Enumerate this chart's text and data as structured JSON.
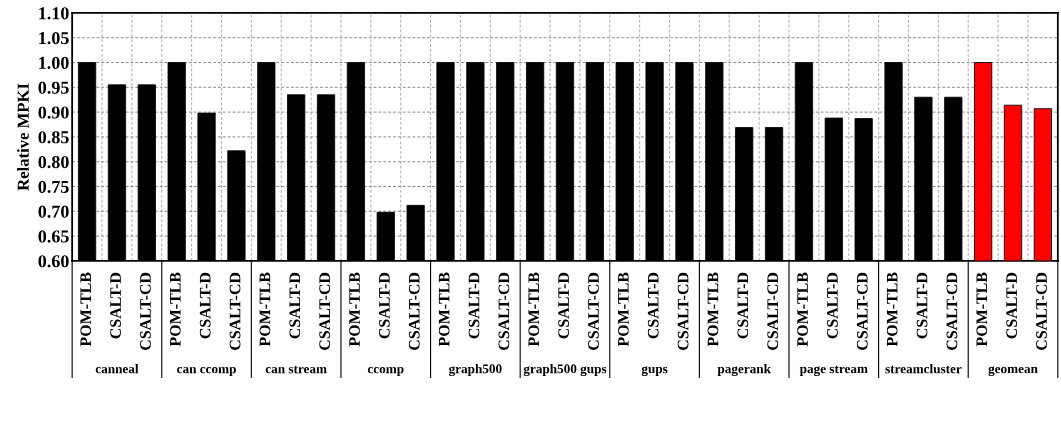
{
  "chart_data": {
    "type": "bar",
    "ylabel": "Relative MPKI",
    "categories": [
      "POM-TLB",
      "CSALT-D",
      "CSALT-CD",
      "POM-TLB",
      "CSALT-D",
      "CSALT-CD",
      "POM-TLB",
      "CSALT-D",
      "CSALT-CD",
      "POM-TLB",
      "CSALT-D",
      "CSALT-CD",
      "POM-TLB",
      "CSALT-D",
      "CSALT-CD",
      "POM-TLB",
      "CSALT-D",
      "CSALT-CD",
      "POM-TLB",
      "CSALT-D",
      "CSALT-CD",
      "POM-TLB",
      "CSALT-D",
      "CSALT-CD",
      "POM-TLB",
      "CSALT-D",
      "CSALT-CD",
      "POM-TLB",
      "CSALT-D",
      "CSALT-CD",
      "POM-TLB",
      "CSALT-D",
      "CSALT-CD"
    ],
    "values": [
      1.0,
      0.955,
      0.955,
      1.0,
      0.898,
      0.822,
      1.0,
      0.935,
      0.935,
      1.0,
      0.698,
      0.712,
      1.0,
      1.0,
      1.0,
      1.0,
      1.0,
      1.0,
      1.0,
      1.0,
      1.0,
      1.0,
      0.869,
      0.869,
      1.0,
      0.888,
      0.887,
      1.0,
      0.93,
      0.93,
      1.0,
      0.914,
      0.907
    ],
    "colors": [
      "#000000",
      "#000000",
      "#000000",
      "#000000",
      "#000000",
      "#000000",
      "#000000",
      "#000000",
      "#000000",
      "#000000",
      "#000000",
      "#000000",
      "#000000",
      "#000000",
      "#000000",
      "#000000",
      "#000000",
      "#000000",
      "#000000",
      "#000000",
      "#000000",
      "#000000",
      "#000000",
      "#000000",
      "#000000",
      "#000000",
      "#000000",
      "#000000",
      "#000000",
      "#000000",
      "#ff0000",
      "#ff0000",
      "#ff0000"
    ],
    "annotations": [
      "canneal",
      "can ccomp",
      "can stream",
      "ccomp",
      "graph500",
      "graph500 gups",
      "gups",
      "pagerank",
      "page stream",
      "streamcluster",
      "geomean"
    ],
    "ylim": [
      0.6,
      1.1
    ],
    "yticks": [
      {
        "value": 0.6,
        "label": "0.60"
      },
      {
        "value": 0.65,
        "label": "0.65"
      },
      {
        "value": 0.7,
        "label": "0.70"
      },
      {
        "value": 0.75,
        "label": "0.75"
      },
      {
        "value": 0.8,
        "label": "0.80"
      },
      {
        "value": 0.85,
        "label": "0.85"
      },
      {
        "value": 0.9,
        "label": "0.90"
      },
      {
        "value": 0.95,
        "label": "0.95"
      },
      {
        "value": 1.0,
        "label": "1.00"
      },
      {
        "value": 1.05,
        "label": "1.05"
      },
      {
        "value": 1.1,
        "label": "1.10"
      }
    ],
    "grid": true
  }
}
